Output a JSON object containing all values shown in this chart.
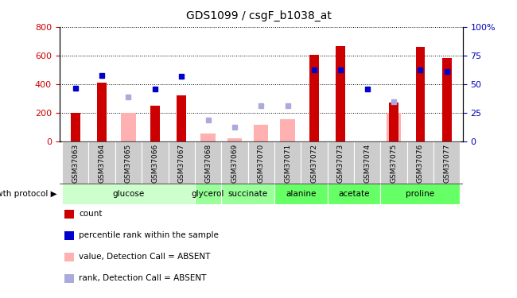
{
  "title": "GDS1099 / csgF_b1038_at",
  "samples": [
    "GSM37063",
    "GSM37064",
    "GSM37065",
    "GSM37066",
    "GSM37067",
    "GSM37068",
    "GSM37069",
    "GSM37070",
    "GSM37071",
    "GSM37072",
    "GSM37073",
    "GSM37074",
    "GSM37075",
    "GSM37076",
    "GSM37077"
  ],
  "red_bars": [
    200,
    410,
    null,
    250,
    320,
    null,
    null,
    null,
    null,
    605,
    665,
    null,
    270,
    660,
    580
  ],
  "pink_bars": [
    null,
    null,
    200,
    null,
    null,
    55,
    25,
    115,
    155,
    null,
    null,
    null,
    200,
    null,
    null
  ],
  "blue_squares": [
    370,
    460,
    null,
    365,
    455,
    null,
    null,
    null,
    null,
    500,
    500,
    365,
    null,
    500,
    490
  ],
  "lavender_squares": [
    null,
    null,
    310,
    null,
    null,
    150,
    100,
    250,
    250,
    null,
    null,
    null,
    280,
    null,
    null
  ],
  "groups": [
    {
      "label": "glucose",
      "start": 0,
      "end": 5,
      "color": "#ccffcc"
    },
    {
      "label": "glycerol",
      "start": 5,
      "end": 6,
      "color": "#99ff99"
    },
    {
      "label": "succinate",
      "start": 6,
      "end": 8,
      "color": "#99ff99"
    },
    {
      "label": "alanine",
      "start": 8,
      "end": 10,
      "color": "#66ff66"
    },
    {
      "label": "acetate",
      "start": 10,
      "end": 12,
      "color": "#66ff66"
    },
    {
      "label": "proline",
      "start": 12,
      "end": 15,
      "color": "#66ff66"
    }
  ],
  "ylim_left": [
    0,
    800
  ],
  "ylim_right": [
    0,
    100
  ],
  "left_yticks": [
    0,
    200,
    400,
    600,
    800
  ],
  "right_yticks": [
    0,
    25,
    50,
    75,
    100
  ],
  "ylabel_left_color": "#cc0000",
  "ylabel_right_color": "#0000bb",
  "red_color": "#cc0000",
  "pink_color": "#ffb0b0",
  "blue_color": "#0000cc",
  "lavender_color": "#aaaadd",
  "sample_box_color": "#cccccc",
  "growth_protocol_label": "growth protocol",
  "legend_items": [
    {
      "color": "#cc0000",
      "label": "count",
      "marker": "s"
    },
    {
      "color": "#0000cc",
      "label": "percentile rank within the sample",
      "marker": "s"
    },
    {
      "color": "#ffb0b0",
      "label": "value, Detection Call = ABSENT",
      "marker": "s"
    },
    {
      "color": "#aaaadd",
      "label": "rank, Detection Call = ABSENT",
      "marker": "s"
    }
  ]
}
